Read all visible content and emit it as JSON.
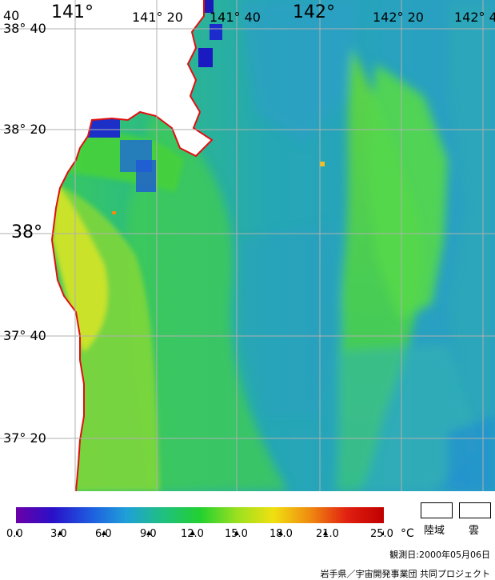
{
  "map": {
    "lon_labels": [
      {
        "text": "141°",
        "size": "big"
      },
      {
        "text": "141° 20",
        "size": "small"
      },
      {
        "text": "141° 40",
        "size": "small"
      },
      {
        "text": "142°",
        "size": "big"
      },
      {
        "text": "142° 20",
        "size": "small"
      },
      {
        "text": "142° 4",
        "size": "small"
      }
    ],
    "corner_label": "40",
    "lat_labels": [
      {
        "text": "38° 40",
        "size": "small"
      },
      {
        "text": "38° 20",
        "size": "small"
      },
      {
        "text": "38°",
        "size": "big"
      },
      {
        "text": "37° 40",
        "size": "small"
      },
      {
        "text": "37° 20",
        "size": "small"
      }
    ],
    "colors": {
      "land": "#ffffff",
      "coastline": "#e01010",
      "grid": "#b0b0b0"
    }
  },
  "legend": {
    "ticks": [
      "0.0",
      "3.0",
      "6.0",
      "9.0",
      "12.0",
      "15.0",
      "18.0",
      "21.0",
      "25.0"
    ],
    "unit": "°C",
    "gradient": [
      "#6a00a8",
      "#2a10c8",
      "#1e5ae0",
      "#1fa0d8",
      "#20c080",
      "#22d030",
      "#9ae020",
      "#f0e010",
      "#f08a10",
      "#e02010",
      "#c00000"
    ],
    "key_land": "陸域",
    "key_cloud": "雲"
  },
  "footer": {
    "observation_date": "観測日:2000年05月06日",
    "credit": "岩手県／宇宙開発事業団 共同プロジェクト"
  }
}
